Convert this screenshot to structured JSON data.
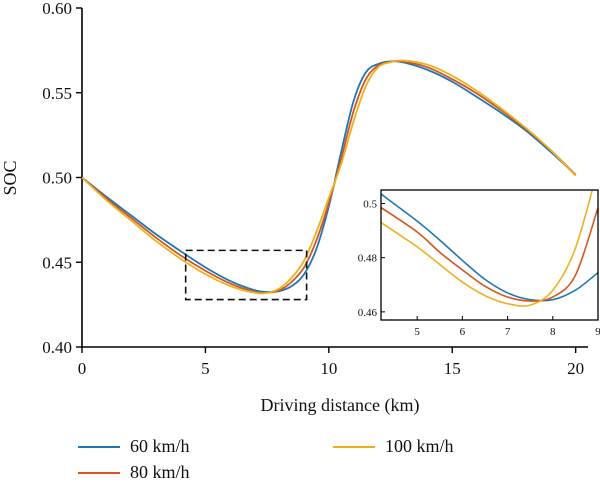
{
  "chart_data": {
    "type": "line",
    "xlabel": "Driving distance (km)",
    "ylabel": "SOC",
    "xlim": [
      0,
      20.5
    ],
    "ylim": [
      0.4,
      0.6
    ],
    "xticks": [
      "0",
      "5",
      "10",
      "15",
      "20"
    ],
    "yticks": [
      "0.40",
      "0.45",
      "0.50",
      "0.55",
      "0.60"
    ],
    "grid": false,
    "legend_position": "bottom",
    "series": [
      {
        "name": "60 km/h",
        "color": "#1f77b4",
        "x": [
          0,
          1,
          2,
          3,
          4,
          5,
          6,
          7,
          7.5,
          8,
          8.5,
          9,
          9.5,
          10,
          10.5,
          11,
          11.5,
          12,
          12.5,
          13,
          14,
          15,
          16,
          17,
          18,
          19,
          20
        ],
        "y": [
          0.5,
          0.4885,
          0.4775,
          0.4665,
          0.4565,
          0.447,
          0.439,
          0.4335,
          0.4325,
          0.433,
          0.436,
          0.443,
          0.458,
          0.483,
          0.515,
          0.545,
          0.562,
          0.567,
          0.5685,
          0.568,
          0.5635,
          0.5565,
          0.5475,
          0.538,
          0.5275,
          0.515,
          0.5015
        ]
      },
      {
        "name": "80 km/h",
        "color": "#d4551e",
        "x": [
          0,
          1,
          2,
          3,
          4,
          5,
          6,
          7,
          7.5,
          8,
          8.5,
          9,
          9.5,
          10,
          10.5,
          11,
          11.5,
          12,
          12.5,
          13,
          14,
          15,
          16,
          17,
          18,
          19,
          20
        ],
        "y": [
          0.5,
          0.4875,
          0.476,
          0.4645,
          0.454,
          0.445,
          0.4375,
          0.4325,
          0.432,
          0.4335,
          0.4385,
          0.447,
          0.463,
          0.485,
          0.511,
          0.539,
          0.558,
          0.566,
          0.5683,
          0.5685,
          0.565,
          0.558,
          0.5495,
          0.5395,
          0.5285,
          0.516,
          0.5015
        ]
      },
      {
        "name": "100 km/h",
        "color": "#edb120",
        "x": [
          0,
          1,
          2,
          3,
          4,
          5,
          6,
          7,
          7.5,
          8,
          8.5,
          9,
          9.5,
          10,
          10.5,
          11,
          11.5,
          12,
          12.5,
          13,
          14,
          15,
          16,
          17,
          18,
          19,
          20
        ],
        "y": [
          0.5,
          0.4865,
          0.4745,
          0.4625,
          0.452,
          0.443,
          0.436,
          0.432,
          0.432,
          0.4345,
          0.441,
          0.451,
          0.468,
          0.488,
          0.508,
          0.533,
          0.554,
          0.565,
          0.568,
          0.569,
          0.5665,
          0.56,
          0.551,
          0.5405,
          0.529,
          0.516,
          0.501
        ]
      }
    ],
    "zoom_box": {
      "x_range": [
        4.2,
        9.1
      ],
      "y_range": [
        0.428,
        0.457
      ]
    },
    "inset": {
      "xlim": [
        4.2,
        9.0
      ],
      "ylim": [
        0.457,
        0.505
      ],
      "xticks": [
        "5",
        "6",
        "7",
        "8",
        "9"
      ],
      "yticks": [
        "0.46",
        "0.48",
        "0.5"
      ],
      "series": [
        {
          "name": "60 km/h",
          "x": [
            4.2,
            5,
            5.5,
            6,
            6.5,
            7,
            7.5,
            8,
            8.5,
            9.0
          ],
          "y": [
            0.5035,
            0.4935,
            0.4865,
            0.479,
            0.472,
            0.467,
            0.4645,
            0.4645,
            0.468,
            0.4745
          ]
        },
        {
          "name": "80 km/h",
          "x": [
            4.2,
            5,
            5.5,
            6,
            6.5,
            7,
            7.5,
            8,
            8.5,
            9.0
          ],
          "y": [
            0.4985,
            0.4895,
            0.482,
            0.4755,
            0.4695,
            0.4655,
            0.464,
            0.4655,
            0.4735,
            0.4985
          ]
        },
        {
          "name": "100 km/h",
          "x": [
            4.2,
            5,
            5.5,
            6,
            6.5,
            7,
            7.5,
            8,
            8.5,
            9.0
          ],
          "y": [
            0.493,
            0.484,
            0.4775,
            0.471,
            0.466,
            0.463,
            0.4625,
            0.468,
            0.4835,
            0.513
          ]
        }
      ]
    }
  }
}
